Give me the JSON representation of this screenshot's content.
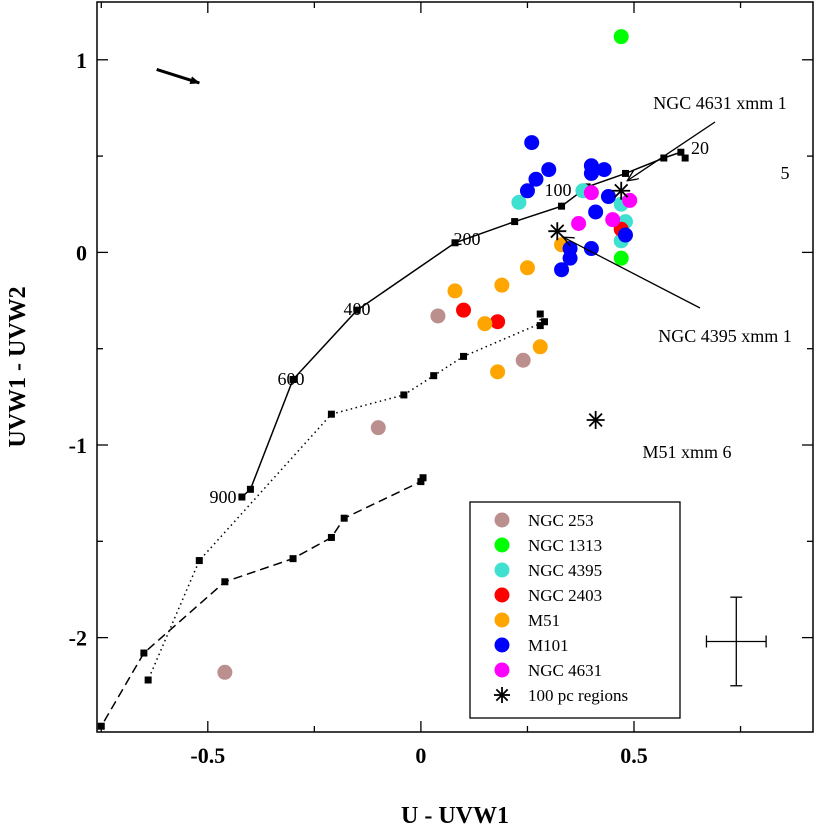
{
  "chart_data": {
    "type": "scatter",
    "xlabel": "U - UVW1",
    "ylabel": "UVW1 - UVW2",
    "xlim": [
      -0.76,
      0.92
    ],
    "ylim": [
      -2.49,
      1.3
    ],
    "xticks": [
      -0.5,
      0,
      0.5
    ],
    "xtick_labels": [
      "-0.5",
      "0",
      "0.5"
    ],
    "yticks": [
      -2,
      -1,
      0,
      1
    ],
    "ytick_labels": [
      "-2",
      "-1",
      "0",
      "1"
    ],
    "grid": false,
    "legend_position": "bottom-right",
    "colors": {
      "NGC 253": "#bc8f8f",
      "NGC 1313": "#00ff00",
      "NGC 4395": "#40e0d0",
      "NGC 2403": "#ff0000",
      "M51": "#ffa500",
      "M101": "#0000ff",
      "NGC 4631": "#ff00ff",
      "100 pc regions": "#000000"
    },
    "series": [
      {
        "name": "NGC 253",
        "marker": "circle",
        "points": [
          [
            0.04,
            -0.33
          ],
          [
            0.24,
            -0.56
          ],
          [
            -0.1,
            -0.91
          ],
          [
            -0.46,
            -2.18
          ]
        ]
      },
      {
        "name": "NGC 1313",
        "marker": "circle",
        "points": [
          [
            0.47,
            1.12
          ],
          [
            0.47,
            -0.03
          ]
        ]
      },
      {
        "name": "NGC 4395",
        "marker": "circle",
        "points": [
          [
            0.23,
            0.26
          ],
          [
            0.38,
            0.32
          ],
          [
            0.47,
            0.25
          ],
          [
            0.48,
            0.16
          ],
          [
            0.47,
            0.06
          ]
        ]
      },
      {
        "name": "NGC 2403",
        "marker": "circle",
        "points": [
          [
            0.1,
            -0.3
          ],
          [
            0.18,
            -0.36
          ],
          [
            0.47,
            0.12
          ]
        ]
      },
      {
        "name": "M51",
        "marker": "circle",
        "points": [
          [
            0.33,
            0.04
          ],
          [
            0.25,
            -0.08
          ],
          [
            0.19,
            -0.17
          ],
          [
            0.08,
            -0.2
          ],
          [
            0.15,
            -0.37
          ],
          [
            0.28,
            -0.49
          ],
          [
            0.18,
            -0.62
          ]
        ]
      },
      {
        "name": "M101",
        "marker": "circle",
        "points": [
          [
            0.26,
            0.57
          ],
          [
            0.3,
            0.43
          ],
          [
            0.27,
            0.38
          ],
          [
            0.25,
            0.32
          ],
          [
            0.4,
            0.45
          ],
          [
            0.43,
            0.43
          ],
          [
            0.4,
            0.41
          ],
          [
            0.44,
            0.29
          ],
          [
            0.41,
            0.21
          ],
          [
            0.48,
            0.09
          ],
          [
            0.4,
            0.02
          ],
          [
            0.35,
            0.02
          ],
          [
            0.35,
            -0.03
          ],
          [
            0.33,
            -0.09
          ]
        ]
      },
      {
        "name": "NGC 4631",
        "marker": "circle",
        "points": [
          [
            0.4,
            0.31
          ],
          [
            0.49,
            0.27
          ],
          [
            0.45,
            0.17
          ],
          [
            0.37,
            0.15
          ]
        ]
      },
      {
        "name": "100 pc regions",
        "marker": "asterisk",
        "points": [
          [
            0.47,
            0.32
          ],
          [
            0.32,
            0.11
          ],
          [
            0.41,
            -0.87
          ]
        ]
      }
    ],
    "models": [
      {
        "name": "model track (solid)",
        "line_style": "solid",
        "points": [
          [
            0.62,
            0.49
          ],
          [
            0.61,
            0.52
          ],
          [
            0.57,
            0.49
          ],
          [
            0.48,
            0.41
          ],
          [
            0.39,
            0.34
          ],
          [
            0.33,
            0.24
          ],
          [
            0.22,
            0.16
          ],
          [
            0.08,
            0.05
          ],
          [
            -0.15,
            -0.3
          ],
          [
            -0.3,
            -0.66
          ],
          [
            -0.4,
            -1.23
          ],
          [
            -0.42,
            -1.27
          ]
        ],
        "labels": [
          {
            "text": "5",
            "age": 5
          },
          {
            "text": "20",
            "age": 20
          },
          {
            "text": "100",
            "age": 100
          },
          {
            "text": "200",
            "age": 200
          },
          {
            "text": "400",
            "age": 400
          },
          {
            "text": "600",
            "age": 600
          },
          {
            "text": "900",
            "age": 900
          }
        ]
      },
      {
        "name": "model track (dotted)",
        "line_style": "dotted",
        "points": [
          [
            0.28,
            -0.32
          ],
          [
            0.28,
            -0.38
          ],
          [
            0.29,
            -0.36
          ],
          [
            0.1,
            -0.54
          ],
          [
            0.03,
            -0.64
          ],
          [
            -0.04,
            -0.74
          ],
          [
            -0.21,
            -0.84
          ],
          [
            -0.52,
            -1.6
          ],
          [
            -0.64,
            -2.22
          ]
        ]
      },
      {
        "name": "model track (dashed)",
        "line_style": "dashed",
        "points": [
          [
            0.005,
            -1.17
          ],
          [
            0.0,
            -1.19
          ],
          [
            -0.18,
            -1.38
          ],
          [
            -0.21,
            -1.48
          ],
          [
            -0.3,
            -1.59
          ],
          [
            -0.46,
            -1.71
          ],
          [
            -0.65,
            -2.08
          ],
          [
            -0.75,
            -2.46
          ]
        ]
      }
    ],
    "annotations": [
      {
        "text": "NGC 4631 xmm 1",
        "target": [
          0.47,
          0.32
        ]
      },
      {
        "text": "NGC 4395 xmm 1",
        "target": [
          0.32,
          0.11
        ]
      },
      {
        "text": "M51 xmm 6",
        "target": [
          0.41,
          -0.87
        ]
      }
    ],
    "extinction_arrow": {
      "from": [
        -0.62,
        0.95
      ],
      "to": [
        -0.52,
        0.88
      ]
    },
    "error_bar": {
      "x": 0.74,
      "y": -2.02,
      "x_err": 0.07,
      "y_err": 0.23
    }
  }
}
